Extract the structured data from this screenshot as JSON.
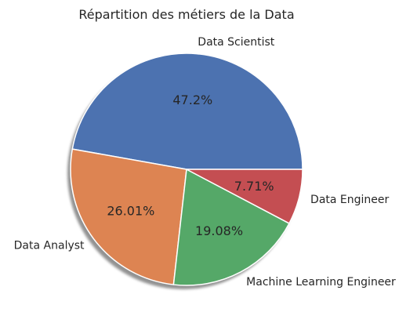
{
  "chart_data": {
    "type": "pie",
    "title": "Répartition des métiers de la Data",
    "slices": [
      {
        "label": "Data Scientist",
        "value": 47.2,
        "value_label": "47.2%",
        "color": "#4c72b0"
      },
      {
        "label": "Data Analyst",
        "value": 26.01,
        "value_label": "26.01%",
        "color": "#dd8452"
      },
      {
        "label": "Machine Learning Engineer",
        "value": 19.08,
        "value_label": "19.08%",
        "color": "#55a868"
      },
      {
        "label": "Data Engineer",
        "value": 7.71,
        "value_label": "7.71%",
        "color": "#c44e52"
      }
    ],
    "start_angle_deg": 0,
    "direction": "counterclockwise",
    "shadow": true,
    "slice_edge_color": "#ffffff"
  }
}
